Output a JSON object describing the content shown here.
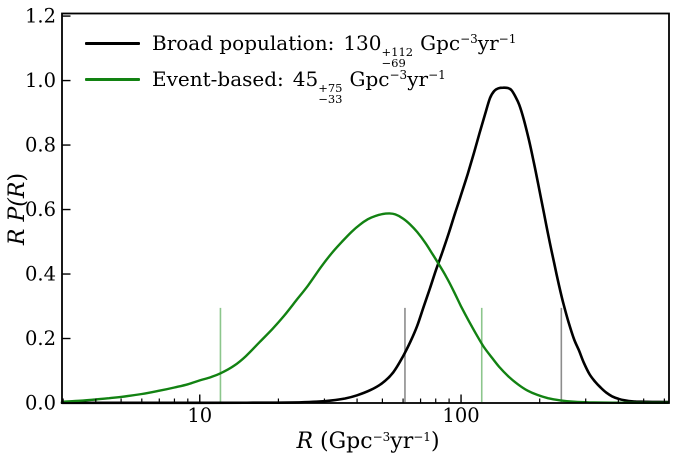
{
  "figure": {
    "legend": {
      "items": [
        {
          "label": "Broad population:",
          "value": "130",
          "err_plus": "+112",
          "err_minus": "−69",
          "unit_base": "Gpc",
          "unit_exp1": "−3",
          "unit_mid": "yr",
          "unit_exp2": "−1",
          "color": "#000000"
        },
        {
          "label": "Event-based:",
          "value": "45",
          "err_plus": "+75",
          "err_minus": "−33",
          "unit_base": "Gpc",
          "unit_exp1": "−3",
          "unit_mid": "yr",
          "unit_exp2": "−1",
          "color": "#128212"
        }
      ]
    },
    "x_axis_title": {
      "sym": "R",
      "open": " (Gpc",
      "exp1": "−3",
      "mid": "yr",
      "exp2": "−1",
      "close": ")"
    },
    "y_axis_title": {
      "sym": "R",
      "mid": " P(",
      "sym2": "R",
      "close": ")"
    }
  },
  "chart_data": {
    "type": "line",
    "title": "",
    "xlabel": "R (Gpc^-3 yr^-1)",
    "ylabel": "R P(R)",
    "x_scale": "log",
    "grid": false,
    "legend_position": "upper left",
    "xlim": [
      2.97,
      625
    ],
    "ylim": [
      0,
      1.208
    ],
    "y_ticks": [
      {
        "value": 0.0,
        "label": "0.0"
      },
      {
        "value": 0.2,
        "label": "0.2"
      },
      {
        "value": 0.4,
        "label": "0.4"
      },
      {
        "value": 0.6,
        "label": "0.6"
      },
      {
        "value": 0.8,
        "label": "0.8"
      },
      {
        "value": 1.0,
        "label": "1.0"
      },
      {
        "value": 1.2,
        "label": "1.2"
      }
    ],
    "x_major_ticks": [
      {
        "value": 10,
        "label": "10"
      },
      {
        "value": 100,
        "label": "100"
      }
    ],
    "x_minor_ticks": [
      3,
      4,
      5,
      6,
      7,
      8,
      9,
      20,
      30,
      40,
      50,
      60,
      70,
      80,
      90,
      200,
      300,
      400,
      500,
      600
    ],
    "interval_lines": [
      {
        "x": 12,
        "ymax": 0.295,
        "color": "#8cc68c",
        "meaning": "event-based lower bound"
      },
      {
        "x": 61,
        "ymax": 0.295,
        "color": "#8c8c8c",
        "meaning": "broad-population lower bound"
      },
      {
        "x": 120,
        "ymax": 0.295,
        "color": "#8cc68c",
        "meaning": "event-based upper bound"
      },
      {
        "x": 242,
        "ymax": 0.295,
        "color": "#8c8c8c",
        "meaning": "broad-population upper bound"
      }
    ],
    "series": [
      {
        "name": "Broad population",
        "median": 130,
        "err_plus": 112,
        "err_minus": 69,
        "color": "#000000",
        "width": 2.6,
        "points": [
          [
            2.97,
            0.0005
          ],
          [
            10,
            0.0005
          ],
          [
            16,
            0.0008
          ],
          [
            20,
            0.001
          ],
          [
            24,
            0.002
          ],
          [
            28,
            0.004
          ],
          [
            32,
            0.008
          ],
          [
            36,
            0.014
          ],
          [
            40,
            0.024
          ],
          [
            45,
            0.04
          ],
          [
            50,
            0.062
          ],
          [
            55,
            0.095
          ],
          [
            60,
            0.145
          ],
          [
            64,
            0.19
          ],
          [
            68,
            0.24
          ],
          [
            72,
            0.3
          ],
          [
            76,
            0.355
          ],
          [
            80,
            0.41
          ],
          [
            85,
            0.47
          ],
          [
            90,
            0.53
          ],
          [
            95,
            0.59
          ],
          [
            100,
            0.645
          ],
          [
            106,
            0.71
          ],
          [
            112,
            0.775
          ],
          [
            118,
            0.84
          ],
          [
            124,
            0.9
          ],
          [
            129,
            0.945
          ],
          [
            134,
            0.968
          ],
          [
            139,
            0.976
          ],
          [
            145,
            0.978
          ],
          [
            151,
            0.977
          ],
          [
            156,
            0.97
          ],
          [
            161,
            0.952
          ],
          [
            167,
            0.925
          ],
          [
            174,
            0.878
          ],
          [
            182,
            0.815
          ],
          [
            190,
            0.745
          ],
          [
            199,
            0.665
          ],
          [
            208,
            0.585
          ],
          [
            217,
            0.51
          ],
          [
            227,
            0.435
          ],
          [
            237,
            0.365
          ],
          [
            247,
            0.305
          ],
          [
            258,
            0.25
          ],
          [
            270,
            0.2
          ],
          [
            282,
            0.165
          ],
          [
            295,
            0.125
          ],
          [
            310,
            0.09
          ],
          [
            326,
            0.066
          ],
          [
            342,
            0.048
          ],
          [
            360,
            0.032
          ],
          [
            380,
            0.02
          ],
          [
            400,
            0.013
          ],
          [
            425,
            0.008
          ],
          [
            455,
            0.005
          ],
          [
            490,
            0.004
          ],
          [
            540,
            0.0035
          ],
          [
            620,
            0.003
          ]
        ]
      },
      {
        "name": "Event-based",
        "median": 45,
        "err_plus": 75,
        "err_minus": 33,
        "color": "#128212",
        "width": 2.4,
        "points": [
          [
            2.97,
            0.004
          ],
          [
            3.5,
            0.007
          ],
          [
            4,
            0.011
          ],
          [
            4.5,
            0.015
          ],
          [
            5,
            0.019
          ],
          [
            6,
            0.028
          ],
          [
            7,
            0.038
          ],
          [
            8,
            0.048
          ],
          [
            9,
            0.058
          ],
          [
            10,
            0.07
          ],
          [
            11,
            0.08
          ],
          [
            12,
            0.092
          ],
          [
            13.5,
            0.115
          ],
          [
            15,
            0.145
          ],
          [
            17,
            0.19
          ],
          [
            19,
            0.23
          ],
          [
            21,
            0.27
          ],
          [
            23.5,
            0.32
          ],
          [
            26,
            0.365
          ],
          [
            29,
            0.42
          ],
          [
            32,
            0.465
          ],
          [
            35,
            0.5
          ],
          [
            38,
            0.53
          ],
          [
            41,
            0.553
          ],
          [
            44,
            0.57
          ],
          [
            47,
            0.58
          ],
          [
            50,
            0.586
          ],
          [
            53,
            0.588
          ],
          [
            56,
            0.585
          ],
          [
            60,
            0.572
          ],
          [
            64,
            0.553
          ],
          [
            68,
            0.53
          ],
          [
            73,
            0.497
          ],
          [
            78,
            0.46
          ],
          [
            83,
            0.425
          ],
          [
            88,
            0.39
          ],
          [
            94,
            0.345
          ],
          [
            100,
            0.3
          ],
          [
            107,
            0.255
          ],
          [
            114,
            0.215
          ],
          [
            122,
            0.175
          ],
          [
            130,
            0.145
          ],
          [
            140,
            0.112
          ],
          [
            152,
            0.082
          ],
          [
            165,
            0.058
          ],
          [
            180,
            0.038
          ],
          [
            196,
            0.025
          ],
          [
            215,
            0.015
          ],
          [
            240,
            0.008
          ],
          [
            270,
            0.004
          ],
          [
            310,
            0.002
          ],
          [
            380,
            0.001
          ],
          [
            620,
            0.0005
          ]
        ]
      }
    ]
  }
}
